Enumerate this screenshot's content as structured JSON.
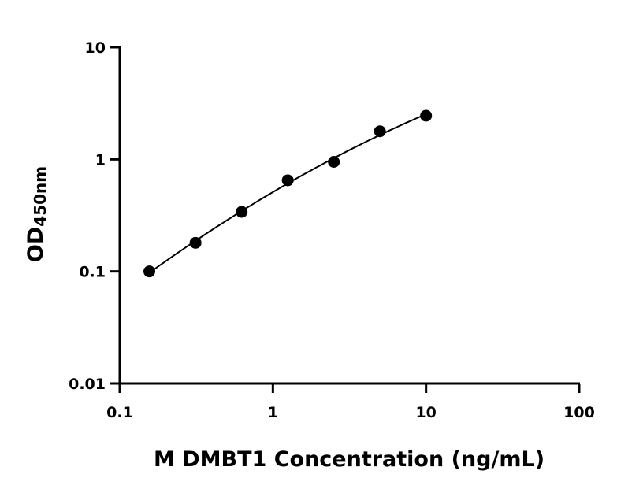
{
  "chart_data": {
    "type": "scatter",
    "title": "",
    "xlabel": "M DMBT1 Concentration (ng/mL)",
    "ylabel": "OD",
    "ylabel_subscript": "450nm",
    "xscale": "log",
    "yscale": "log",
    "xlim": [
      0.1,
      100
    ],
    "ylim": [
      0.01,
      10
    ],
    "xticks": [
      "0.1",
      "1",
      "10",
      "100"
    ],
    "yticks": [
      "0.01",
      "0.1",
      "1",
      "10"
    ],
    "grid": false,
    "legend": "none",
    "fit_curve": true,
    "colors": {
      "points": "#000000",
      "curve": "#000000"
    },
    "series": [
      {
        "x": [
          0.156,
          0.3125,
          0.625,
          1.25,
          2.5,
          5,
          10
        ],
        "y": [
          0.1,
          0.18,
          0.34,
          0.65,
          0.95,
          1.78,
          2.45
        ]
      }
    ]
  }
}
